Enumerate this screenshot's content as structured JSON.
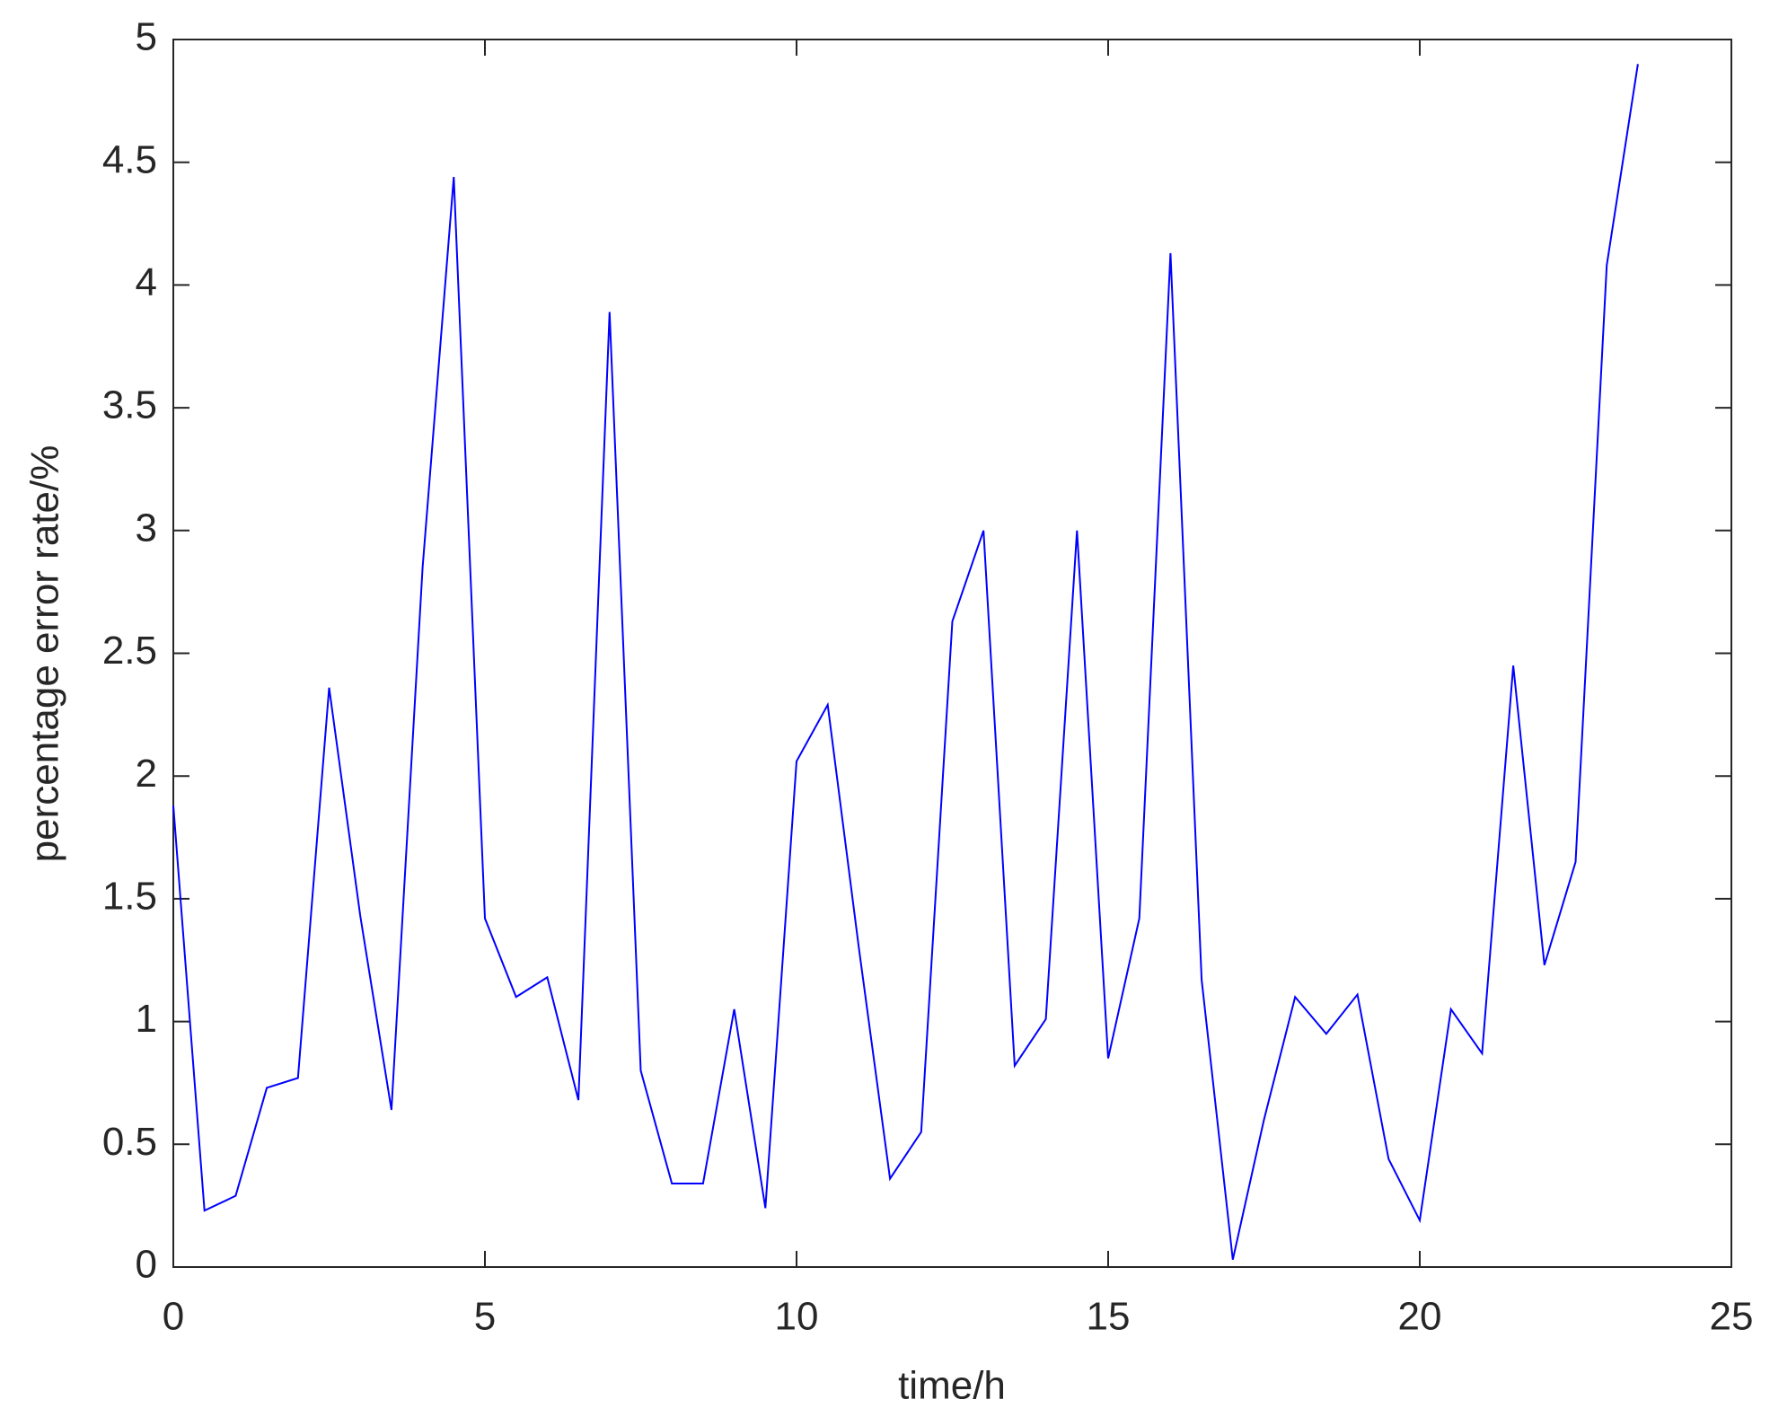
{
  "chart_data": {
    "type": "line",
    "xlabel": "time/h",
    "ylabel": "percentage error rate/%",
    "x": [
      0,
      0.5,
      1,
      1.5,
      2,
      2.5,
      3,
      3.5,
      4,
      4.5,
      5,
      5.5,
      6,
      6.5,
      7,
      7.5,
      8,
      8.5,
      9,
      9.5,
      10,
      10.5,
      11,
      11.5,
      12,
      12.5,
      13,
      13.5,
      14,
      14.5,
      15,
      15.5,
      16,
      16.5,
      17,
      17.5,
      18,
      18.5,
      19,
      19.5,
      20,
      20.5,
      21,
      21.5,
      22,
      22.5,
      23,
      23.5
    ],
    "values": [
      1.88,
      0.23,
      0.29,
      0.73,
      0.77,
      2.36,
      1.43,
      0.64,
      2.85,
      4.44,
      1.42,
      1.1,
      1.18,
      0.68,
      3.89,
      0.8,
      0.34,
      0.34,
      1.05,
      0.24,
      2.06,
      2.29,
      1.3,
      0.36,
      0.55,
      2.63,
      3.0,
      0.82,
      1.01,
      3.0,
      0.85,
      1.42,
      4.13,
      1.17,
      0.03,
      0.6,
      1.1,
      0.95,
      1.11,
      0.44,
      0.19,
      1.05,
      0.87,
      2.45,
      1.23,
      1.65,
      4.08,
      4.9
    ],
    "color": "#0000ff",
    "xlim": [
      0,
      25
    ],
    "xticks": [
      0,
      5,
      10,
      15,
      20,
      25
    ],
    "ylim": [
      0,
      5
    ],
    "yticks": [
      0,
      0.5,
      1,
      1.5,
      2,
      2.5,
      3,
      3.5,
      4,
      4.5,
      5
    ],
    "grid": false
  }
}
